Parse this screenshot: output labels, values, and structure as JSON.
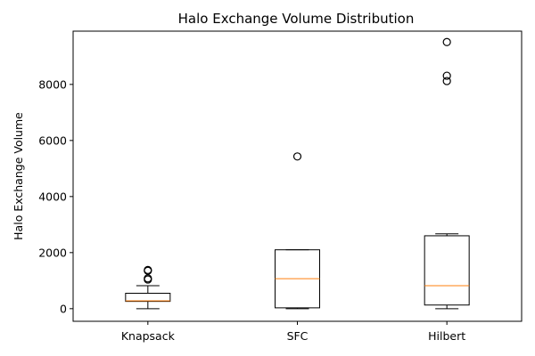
{
  "chart_data": {
    "type": "box",
    "title": "Halo Exchange Volume Distribution",
    "xlabel": "",
    "ylabel": "Halo Exchange Volume",
    "ylim": [
      -450,
      9900
    ],
    "yticks": [
      0,
      2000,
      4000,
      6000,
      8000
    ],
    "ytick_labels": [
      "0",
      "2000",
      "4000",
      "6000",
      "8000"
    ],
    "grid": false,
    "categories": [
      "Knapsack",
      "SFC",
      "Hilbert"
    ],
    "boxes": [
      {
        "category": "Knapsack",
        "whisker_low": 0,
        "q1": 260,
        "median": 280,
        "q3": 550,
        "whisker_high": 820,
        "outliers": [
          1040,
          1080,
          1350,
          1380
        ]
      },
      {
        "category": "SFC",
        "whisker_low": 0,
        "q1": 30,
        "median": 1070,
        "q3": 2100,
        "whisker_high": 2100,
        "outliers": [
          5430
        ]
      },
      {
        "category": "Hilbert",
        "whisker_low": 0,
        "q1": 130,
        "median": 820,
        "q3": 2600,
        "whisker_high": 2670,
        "outliers": [
          8120,
          8310,
          9510
        ]
      }
    ],
    "colors": {
      "box": "#000000",
      "median": "#ff7f0e",
      "outlier": "#000000"
    }
  }
}
